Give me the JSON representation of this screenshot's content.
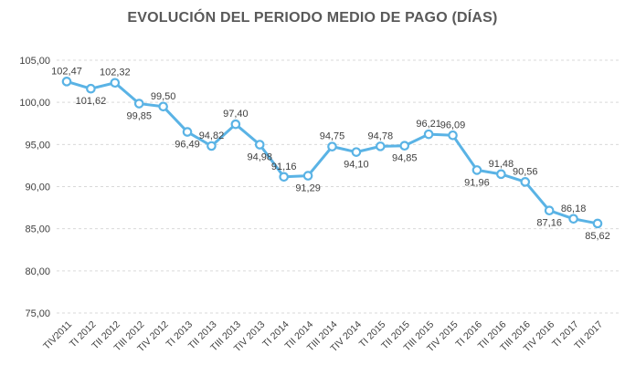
{
  "chart_data": {
    "type": "line",
    "title": "EVOLUCIÓN DEL PERIODO MEDIO DE PAGO (DÍAS)",
    "categories": [
      "TIV2011",
      "TI 2012",
      "TII 2012",
      "TIII 2012",
      "TIV 2012",
      "TI 2013",
      "TII 2013",
      "TIII 2013",
      "TIV 2013",
      "TI 2014",
      "TII 2014",
      "TIII 2014",
      "TIV 2014",
      "TI 2015",
      "TII 2015",
      "TIII 2015",
      "TIV 2015",
      "TI 2016",
      "TII 2016",
      "TIII 2016",
      "TIV 2016",
      "TI 2017",
      "TII 2017"
    ],
    "values": [
      102.47,
      101.62,
      102.32,
      99.85,
      99.5,
      96.49,
      94.82,
      97.4,
      94.98,
      91.16,
      91.29,
      94.75,
      94.1,
      94.78,
      94.85,
      96.21,
      96.09,
      91.96,
      91.48,
      90.56,
      87.16,
      86.18,
      85.62
    ],
    "value_labels": [
      "102,47",
      "101,62",
      "102,32",
      "99,85",
      "99,50",
      "96,49",
      "94,82",
      "97,40",
      "94,98",
      "91,16",
      "91,29",
      "94,75",
      "94,10",
      "94,78",
      "94,85",
      "96,21",
      "96,09",
      "91,96",
      "91,48",
      "90,56",
      "87,16",
      "86,18",
      "85,62"
    ],
    "label_positions": [
      "above",
      "below",
      "above",
      "below",
      "above",
      "below",
      "above",
      "above",
      "below",
      "above",
      "below",
      "above",
      "below",
      "above",
      "below",
      "above",
      "above",
      "below",
      "above",
      "above",
      "below",
      "above",
      "below"
    ],
    "ytick_values": [
      105,
      100,
      95,
      90,
      85,
      80,
      75
    ],
    "ytick_labels": [
      "105,00",
      "100,00",
      "95,00",
      "90,00",
      "85,00",
      "80,00",
      "75,00"
    ],
    "ylim": [
      75,
      105
    ],
    "grid": "horizontal-dashed",
    "legend": "none",
    "xlabel": "",
    "ylabel": "",
    "line_color": "#5ab3e5",
    "marker_fill": "#ffffff",
    "grid_color": "#d9d9d9",
    "label_color": "#404040",
    "title_color": "#595959"
  }
}
